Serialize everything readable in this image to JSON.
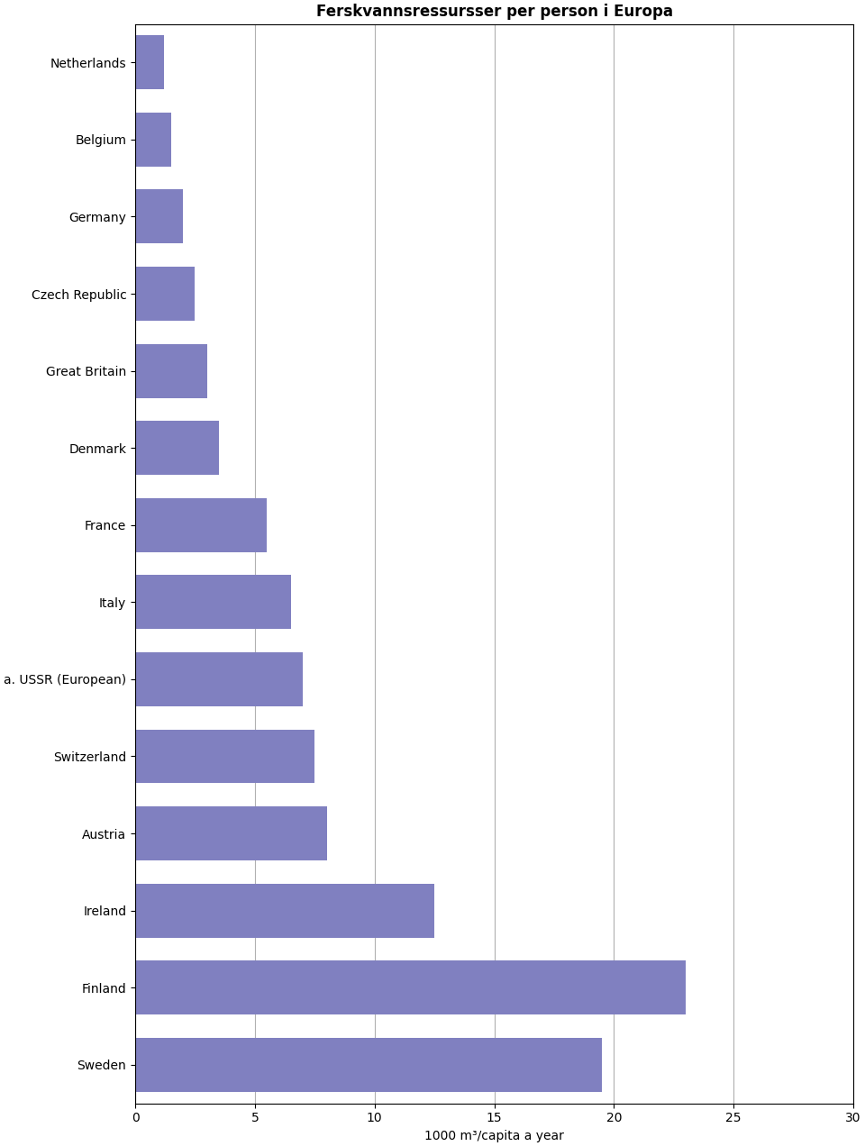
{
  "chart_data": {
    "type": "bar",
    "orientation": "horizontal",
    "title": "Ferskvannsressursser per person i Europa",
    "xlabel": "1000 m³/capita a year",
    "categories": [
      "Sweden",
      "Finland",
      "Ireland",
      "Austria",
      "Switzerland",
      "a. USSR (European)",
      "Italy",
      "France",
      "Denmark",
      "Great Britain",
      "Czech Republic",
      "Germany",
      "Belgium",
      "Netherlands"
    ],
    "values": [
      19.5,
      23.0,
      12.5,
      8.0,
      7.5,
      7.0,
      6.5,
      5.5,
      3.5,
      3.0,
      2.5,
      2.0,
      1.5,
      1.2
    ],
    "color": "#8080c0",
    "xlim": [
      0,
      30
    ],
    "xticks": [
      0,
      5,
      10,
      15,
      20,
      25,
      30
    ],
    "grid": "x"
  }
}
